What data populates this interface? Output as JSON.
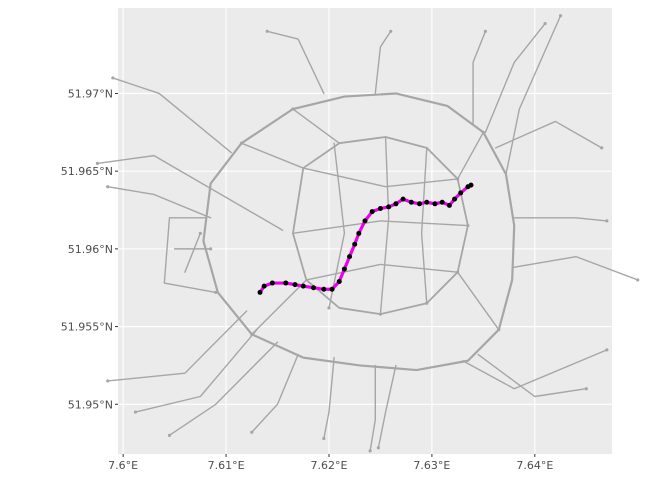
{
  "chart_data": {
    "type": "line",
    "title": "",
    "xlabel": "",
    "ylabel": "",
    "xlim": [
      7.5995,
      7.6475
    ],
    "ylim": [
      51.9468,
      51.9755
    ],
    "x_ticks": [
      {
        "value": 7.6,
        "label": "7.6°E"
      },
      {
        "value": 7.61,
        "label": "7.61°E"
      },
      {
        "value": 7.62,
        "label": "7.62°E"
      },
      {
        "value": 7.63,
        "label": "7.63°E"
      },
      {
        "value": 7.64,
        "label": "7.64°E"
      }
    ],
    "y_ticks": [
      {
        "value": 51.95,
        "label": "51.95°N"
      },
      {
        "value": 51.955,
        "label": "51.955°N"
      },
      {
        "value": 51.96,
        "label": "51.96°N"
      },
      {
        "value": 51.965,
        "label": "51.965°N"
      },
      {
        "value": 51.97,
        "label": "51.97°N"
      }
    ],
    "grid": true,
    "colors": {
      "panel": "#ebebeb",
      "grid_major": "#ffffff",
      "network": "#a6a6a6",
      "route": "#ee00ee",
      "route_points": "#000000"
    },
    "network": {
      "ring_outer": [
        [
          7.6085,
          51.9642
        ],
        [
          7.6115,
          51.9668
        ],
        [
          7.6165,
          51.969
        ],
        [
          7.6215,
          51.9698
        ],
        [
          7.6265,
          51.97
        ],
        [
          7.6315,
          51.9692
        ],
        [
          7.635,
          51.9675
        ],
        [
          7.6372,
          51.9648
        ],
        [
          7.638,
          51.9615
        ],
        [
          7.6378,
          51.958
        ],
        [
          7.6365,
          51.9548
        ],
        [
          7.6335,
          51.9528
        ],
        [
          7.6285,
          51.9522
        ],
        [
          7.623,
          51.9525
        ],
        [
          7.6175,
          51.953
        ],
        [
          7.6125,
          51.9545
        ],
        [
          7.6092,
          51.9572
        ],
        [
          7.6078,
          51.9605
        ],
        [
          7.6085,
          51.9642
        ]
      ],
      "ring_inner": [
        [
          7.6175,
          51.9652
        ],
        [
          7.621,
          51.9668
        ],
        [
          7.6255,
          51.9672
        ],
        [
          7.6295,
          51.9665
        ],
        [
          7.6325,
          51.9645
        ],
        [
          7.6335,
          51.9615
        ],
        [
          7.6325,
          51.9585
        ],
        [
          7.6295,
          51.9565
        ],
        [
          7.625,
          51.9558
        ],
        [
          7.621,
          51.9562
        ],
        [
          7.6178,
          51.958
        ],
        [
          7.6165,
          51.961
        ],
        [
          7.6175,
          51.9652
        ]
      ],
      "roads": [
        [
          [
            7.6155,
            51.9612
          ],
          [
            7.603,
            51.966
          ],
          [
            7.5975,
            51.9655
          ]
        ],
        [
          [
            7.612,
            51.956
          ],
          [
            7.606,
            51.952
          ],
          [
            7.5985,
            51.9515
          ]
        ],
        [
          [
            7.613,
            51.9548
          ],
          [
            7.6075,
            51.9505
          ],
          [
            7.6012,
            51.9495
          ]
        ],
        [
          [
            7.615,
            51.954
          ],
          [
            7.609,
            51.95
          ],
          [
            7.6045,
            51.948
          ]
        ],
        [
          [
            7.617,
            51.9532
          ],
          [
            7.615,
            51.95
          ],
          [
            7.6125,
            51.9482
          ]
        ],
        [
          [
            7.6205,
            51.953
          ],
          [
            7.62,
            51.9495
          ],
          [
            7.6195,
            51.9478
          ]
        ],
        [
          [
            7.6245,
            51.9525
          ],
          [
            7.6245,
            51.949
          ],
          [
            7.624,
            51.947
          ]
        ],
        [
          [
            7.6265,
            51.9525
          ],
          [
            7.6255,
            51.9495
          ],
          [
            7.6248,
            51.9472
          ]
        ],
        [
          [
            7.633,
            51.9528
          ],
          [
            7.638,
            51.951
          ],
          [
            7.647,
            51.9535
          ]
        ],
        [
          [
            7.6345,
            51.9532
          ],
          [
            7.64,
            51.9505
          ],
          [
            7.645,
            51.951
          ]
        ],
        [
          [
            7.6378,
            51.9588
          ],
          [
            7.644,
            51.9595
          ],
          [
            7.65,
            51.958
          ]
        ],
        [
          [
            7.638,
            51.962
          ],
          [
            7.644,
            51.962
          ],
          [
            7.647,
            51.9618
          ]
        ],
        [
          [
            7.6362,
            51.9665
          ],
          [
            7.642,
            51.9682
          ],
          [
            7.6465,
            51.9665
          ]
        ],
        [
          [
            7.6352,
            51.9675
          ],
          [
            7.638,
            51.972
          ],
          [
            7.641,
            51.9745
          ]
        ],
        [
          [
            7.6372,
            51.9648
          ],
          [
            7.6385,
            51.969
          ],
          [
            7.6425,
            51.975
          ]
        ],
        [
          [
            7.634,
            51.968
          ],
          [
            7.634,
            51.972
          ],
          [
            7.6352,
            51.974
          ]
        ],
        [
          [
            7.6195,
            51.97
          ],
          [
            7.617,
            51.9735
          ],
          [
            7.614,
            51.974
          ]
        ],
        [
          [
            7.6245,
            51.97
          ],
          [
            7.625,
            51.973
          ],
          [
            7.626,
            51.974
          ]
        ],
        [
          [
            7.6105,
            51.9662
          ],
          [
            7.6035,
            51.97
          ],
          [
            7.599,
            51.971
          ]
        ],
        [
          [
            7.6085,
            51.962
          ],
          [
            7.603,
            51.9635
          ],
          [
            7.5985,
            51.964
          ]
        ],
        [
          [
            7.6205,
            51.9668
          ],
          [
            7.6215,
            51.961
          ],
          [
            7.62,
            51.9562
          ]
        ],
        [
          [
            7.6255,
            51.9672
          ],
          [
            7.6258,
            51.962
          ],
          [
            7.625,
            51.9558
          ]
        ],
        [
          [
            7.6165,
            51.961
          ],
          [
            7.625,
            51.9618
          ],
          [
            7.6335,
            51.9615
          ]
        ],
        [
          [
            7.6175,
            51.9652
          ],
          [
            7.6255,
            51.964
          ],
          [
            7.6325,
            51.9645
          ]
        ],
        [
          [
            7.6178,
            51.958
          ],
          [
            7.625,
            51.959
          ],
          [
            7.6325,
            51.9585
          ]
        ],
        [
          [
            7.6295,
            51.9665
          ],
          [
            7.629,
            51.961
          ],
          [
            7.6295,
            51.9565
          ]
        ],
        [
          [
            7.621,
            51.9668
          ],
          [
            7.6165,
            51.969
          ]
        ],
        [
          [
            7.6325,
            51.9645
          ],
          [
            7.635,
            51.9675
          ]
        ],
        [
          [
            7.6325,
            51.9585
          ],
          [
            7.6365,
            51.9548
          ]
        ],
        [
          [
            7.6178,
            51.958
          ],
          [
            7.6125,
            51.9545
          ]
        ],
        [
          [
            7.6175,
            51.9652
          ],
          [
            7.6115,
            51.9668
          ]
        ],
        [
          [
            7.608,
            51.962
          ],
          [
            7.6045,
            51.962
          ],
          [
            7.604,
            51.9578
          ],
          [
            7.609,
            51.9572
          ]
        ],
        [
          [
            7.605,
            51.96
          ],
          [
            7.6085,
            51.96
          ]
        ],
        [
          [
            7.606,
            51.9585
          ],
          [
            7.6075,
            51.961
          ]
        ]
      ]
    },
    "route": {
      "points": [
        [
          7.6133,
          51.9572
        ],
        [
          7.6137,
          51.9576
        ],
        [
          7.6145,
          51.9578
        ],
        [
          7.6158,
          51.9578
        ],
        [
          7.6167,
          51.9577
        ],
        [
          7.6175,
          51.9576
        ],
        [
          7.6185,
          51.9575
        ],
        [
          7.6195,
          51.9574
        ],
        [
          7.6203,
          51.9574
        ],
        [
          7.621,
          51.9579
        ],
        [
          7.6215,
          51.9587
        ],
        [
          7.622,
          51.9595
        ],
        [
          7.6225,
          51.9603
        ],
        [
          7.6229,
          51.961
        ],
        [
          7.6235,
          51.9618
        ],
        [
          7.6242,
          51.9624
        ],
        [
          7.625,
          51.9626
        ],
        [
          7.6258,
          51.9627
        ],
        [
          7.6265,
          51.9629
        ],
        [
          7.6272,
          51.9632
        ],
        [
          7.628,
          51.963
        ],
        [
          7.6288,
          51.9629
        ],
        [
          7.6295,
          51.963
        ],
        [
          7.6303,
          51.9629
        ],
        [
          7.631,
          51.963
        ],
        [
          7.6317,
          51.9628
        ],
        [
          7.6322,
          51.9632
        ],
        [
          7.6328,
          51.9636
        ],
        [
          7.6335,
          51.964
        ],
        [
          7.6338,
          51.9641
        ]
      ]
    }
  }
}
